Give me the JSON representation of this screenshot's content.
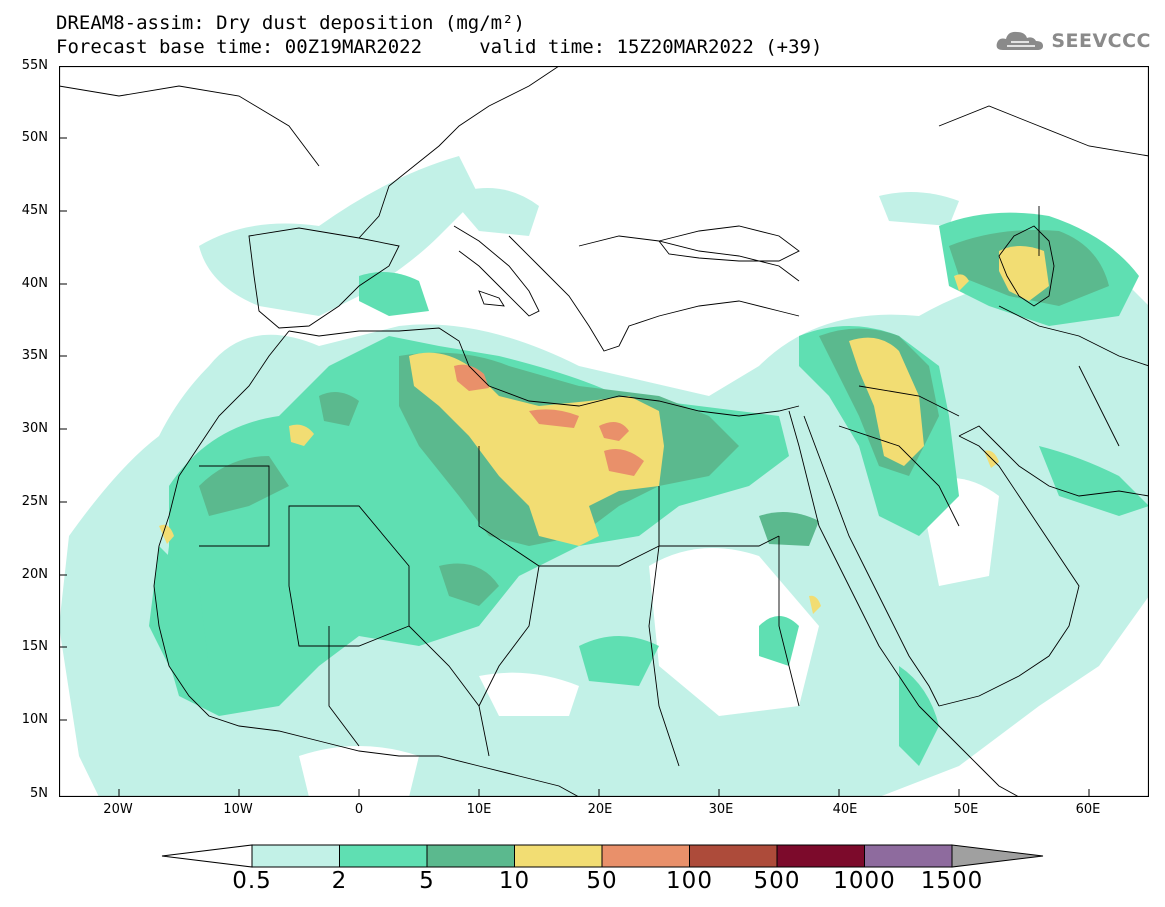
{
  "title": {
    "line1": "DREAM8-assim: Dry dust deposition (mg/m²)",
    "line2": "Forecast base time: 00Z19MAR2022     valid time: 15Z20MAR2022 (+39)"
  },
  "logo": {
    "text": "SEEVCCC",
    "icon": "cloud-logo-icon"
  },
  "map": {
    "region": "North Africa, Europe and Middle East",
    "lat_labels": [
      "55N",
      "50N",
      "45N",
      "40N",
      "35N",
      "30N",
      "25N",
      "20N",
      "15N",
      "10N",
      "5N"
    ],
    "lon_labels": [
      "20W",
      "10W",
      "0",
      "10E",
      "20E",
      "30E",
      "40E",
      "50E",
      "60E"
    ]
  },
  "legend": {
    "labels": [
      "0.5",
      "2",
      "5",
      "10",
      "50",
      "100",
      "500",
      "1000",
      "1500"
    ],
    "colors": [
      "#ffffff",
      "#c2f1e7",
      "#5fdfb2",
      "#5bb98e",
      "#f2dd73",
      "#e9906a",
      "#ad4b3a",
      "#7c0a2b",
      "#8e6b9e",
      "#a0a0a0"
    ]
  }
}
